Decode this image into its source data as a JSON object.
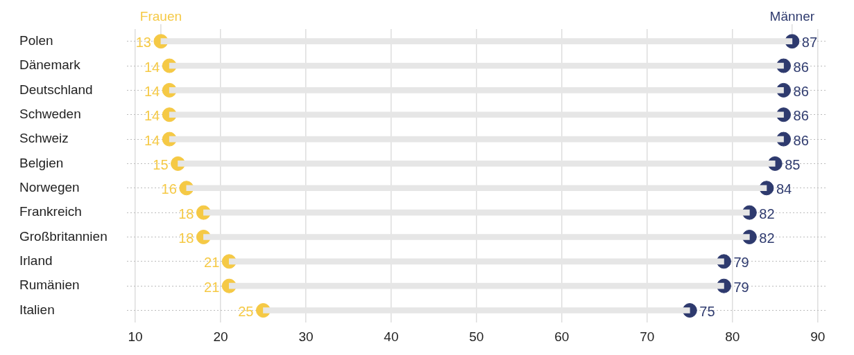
{
  "chart_data": {
    "type": "scatter",
    "orientation": "horizontal",
    "categories": [
      "Polen",
      "Dänemark",
      "Deutschland",
      "Schweden",
      "Schweiz",
      "Belgien",
      "Norwegen",
      "Frankreich",
      "Großbritannien",
      "Irland",
      "Rumänien",
      "Italien"
    ],
    "series": [
      {
        "type": "bar",
        "color": "#e6e6e6",
        "base": [
          13,
          14,
          14,
          14,
          14,
          15,
          16,
          18,
          18,
          21,
          21,
          25
        ],
        "values": [
          74,
          72,
          72,
          72,
          72,
          70,
          68,
          64,
          64,
          58,
          58,
          50
        ]
      },
      {
        "name": "Frauen",
        "color": "#f5c945",
        "values": [
          13,
          14,
          14,
          14,
          14,
          15,
          16,
          18,
          18,
          21,
          21,
          25
        ],
        "data_labels": true
      },
      {
        "name": "Männer",
        "color": "#2e3a6e",
        "values": [
          87,
          86,
          86,
          86,
          86,
          85,
          84,
          82,
          82,
          79,
          79,
          75
        ],
        "data_labels": true
      }
    ],
    "xlim": [
      9,
      91
    ],
    "xticks": [
      10,
      20,
      30,
      40,
      50,
      60,
      70,
      80,
      90
    ],
    "grid": true,
    "legend": "top",
    "marker": "circle"
  }
}
